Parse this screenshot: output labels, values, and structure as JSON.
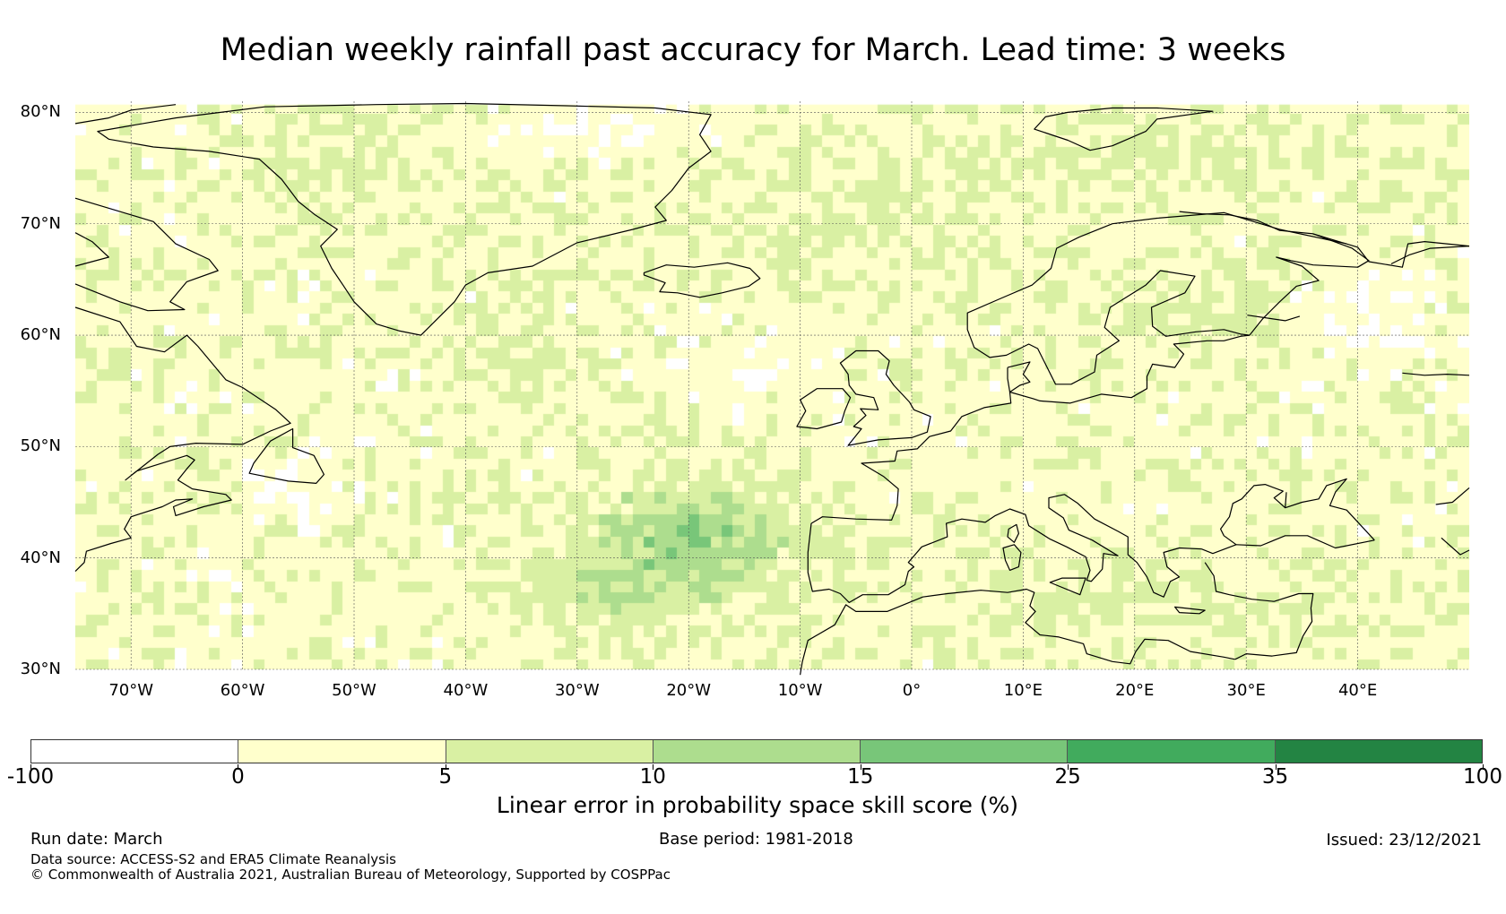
{
  "title": "Median weekly rainfall past accuracy for March. Lead time: 3 weeks",
  "map": {
    "lon_range": [
      -75,
      50
    ],
    "lat_range": [
      30,
      81
    ],
    "grid_on": true,
    "lat_labels": [
      "80°N",
      "70°N",
      "60°N",
      "50°N",
      "40°N",
      "30°N"
    ],
    "lat_values": [
      80,
      70,
      60,
      50,
      40,
      30
    ],
    "lon_labels": [
      "70°W",
      "60°W",
      "50°W",
      "40°W",
      "30°W",
      "20°W",
      "10°W",
      "0°",
      "10°E",
      "20°E",
      "30°E",
      "40°E"
    ],
    "lon_values": [
      -70,
      -60,
      -50,
      -40,
      -30,
      -20,
      -10,
      0,
      10,
      20,
      30,
      40
    ]
  },
  "colorbar": {
    "labels": [
      "-100",
      "0",
      "5",
      "10",
      "15",
      "25",
      "35",
      "100"
    ],
    "colors": [
      "#ffffff",
      "#ffffcc",
      "#d9f0a3",
      "#addd8e",
      "#78c679",
      "#41ab5d",
      "#238443"
    ],
    "title": "Linear error in probability space skill score (%)"
  },
  "footer": {
    "run_date": "Run date: March",
    "base_period": "Base period: 1981-2018",
    "issued": "Issued: 23/12/2021",
    "data_source": "Data source: ACCESS-S2 and ERA5 Climate Reanalysis",
    "copyright": "© Commonwealth of Australia 2021, Australian Bureau of Meteorology, Supported by COSPPac"
  }
}
